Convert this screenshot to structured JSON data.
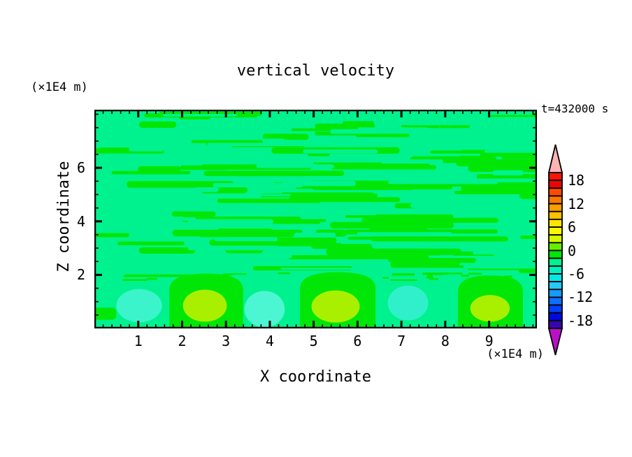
{
  "title": "vertical velocity",
  "time_label": "t=432000 s",
  "axes": {
    "x": {
      "label": "X coordinate",
      "unit": "(×1E4 m)",
      "tick_values": [
        1,
        2,
        3,
        4,
        5,
        6,
        7,
        8,
        9
      ],
      "tick_labels": [
        "1",
        "2",
        "3",
        "4",
        "5",
        "6",
        "7",
        "8",
        "9"
      ],
      "minor_step": 0.2,
      "range": [
        0,
        10.09
      ]
    },
    "z": {
      "label": "Z coordinate",
      "unit": "(×1E4 m)",
      "tick_values": [
        2,
        4,
        6
      ],
      "tick_labels": [
        "2",
        "4",
        "6"
      ],
      "minor_step": 0.5,
      "range": [
        0,
        8.17
      ]
    }
  },
  "colorbar": {
    "value_max": 20,
    "value_min": -20,
    "step": 2,
    "segment_colors_top_to_bottom": [
      "#fa1408",
      "#ec0400",
      "#fc4c00",
      "#fc7800",
      "#fc9c00",
      "#fcc000",
      "#fce400",
      "#f8f800",
      "#d4f800",
      "#66ee00",
      "#00e606",
      "#00f28e",
      "#00f0c0",
      "#00e8e8",
      "#28c8fa",
      "#149cfa",
      "#0c70fc",
      "#0040fc",
      "#0008e0",
      "#3408ac"
    ],
    "over_color": "#ffb4b4",
    "under_color": "#bc10c8",
    "tick_values": [
      18,
      12,
      6,
      0,
      -6,
      -12,
      -18
    ],
    "tick_labels": [
      "18",
      "12",
      "6",
      "0",
      "-6",
      "-12",
      "-18"
    ]
  },
  "chart_data": {
    "type": "heatmap",
    "subtype": "filled-contour",
    "title": "vertical velocity",
    "xlabel": "X coordinate (×1E4 m)",
    "ylabel": "Z coordinate (×1E4 m)",
    "annotation": "t=432000 s",
    "x_range": [
      0,
      10.09
    ],
    "z_range": [
      0,
      8.17
    ],
    "contour_interval": 2,
    "contour_levels_labeled": [
      18,
      12,
      6,
      0,
      -6,
      -12,
      -18
    ],
    "field_description": "Vertical velocity near zero over most of the domain: interleaved horizontal streaks of the 0..2 band (green) and -2..0 band (spring green). Below z≈2 a row of alternating convective cells: green updraft columns with yellow-green cores at x≈2.5, 5.5, 9 and cyan downdraft blobs at x≈1, 3.9, 7.2.",
    "colors": {
      "background_band": "#00f28e",
      "positive_band": "#00e606",
      "core_band": "#a8f000"
    },
    "features": {
      "updraft_columns": [
        {
          "x_center": 2.55,
          "half_width": 0.84,
          "top_z": 2.05
        },
        {
          "x_center": 5.55,
          "half_width": 0.86,
          "top_z": 2.1
        },
        {
          "x_center": 9.03,
          "half_width": 0.74,
          "top_z": 1.98
        }
      ],
      "updraft_cores": [
        {
          "x": 2.52,
          "z": 0.85,
          "rx": 0.5,
          "ry": 0.6
        },
        {
          "x": 5.5,
          "z": 0.82,
          "rx": 0.55,
          "ry": 0.6
        },
        {
          "x": 9.02,
          "z": 0.75,
          "rx": 0.45,
          "ry": 0.5
        }
      ],
      "downdraft_blobs": [
        {
          "x": 1.02,
          "z": 0.85,
          "rx": 0.52,
          "ry": 0.62,
          "color": "#3cf4cc"
        },
        {
          "x": 3.88,
          "z": 0.72,
          "rx": 0.46,
          "ry": 0.68,
          "color": "#4df6d2"
        },
        {
          "x": 7.15,
          "z": 0.95,
          "rx": 0.46,
          "ry": 0.65,
          "color": "#30f0cc"
        }
      ],
      "left_edge_patch": {
        "x": 0.0,
        "z": 0.55,
        "w": 0.5,
        "h": 0.45
      },
      "noise": {
        "seed": 7,
        "green_streaks": 95,
        "bg_streaks": 48,
        "z_min": 1.95,
        "z_max": 8.12,
        "boundary_dashes": 22
      }
    }
  }
}
